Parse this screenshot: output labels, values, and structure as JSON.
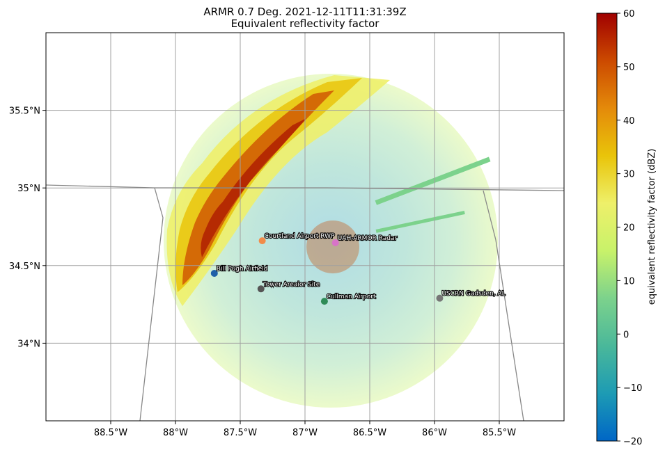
{
  "chart_data": {
    "type": "heatmap",
    "title": "ARMR 0.7 Deg. 2021-12-11T11:31:39Z",
    "subtitle": "Equivalent reflectivity factor",
    "xlim": [
      -89.0,
      -85.0
    ],
    "ylim": [
      33.5,
      36.0
    ],
    "x_ticks": [
      {
        "value": -88.5,
        "label": "88.5°W"
      },
      {
        "value": -88.0,
        "label": "88°W"
      },
      {
        "value": -87.5,
        "label": "87.5°W"
      },
      {
        "value": -87.0,
        "label": "87°W"
      },
      {
        "value": -86.5,
        "label": "86.5°W"
      },
      {
        "value": -86.0,
        "label": "86°W"
      },
      {
        "value": -85.5,
        "label": "85.5°W"
      }
    ],
    "y_ticks": [
      {
        "value": 35.5,
        "label": "35.5°N"
      },
      {
        "value": 35.0,
        "label": "35°N"
      },
      {
        "value": 34.5,
        "label": "34.5°N"
      },
      {
        "value": 34.0,
        "label": "34°N"
      }
    ],
    "grid": true,
    "radar": {
      "lon": -86.765,
      "lat": 34.647
    },
    "stations": [
      {
        "name": "Courtland Airport RWP",
        "lon": -87.33,
        "lat": 34.66,
        "color": "#f28c4a"
      },
      {
        "name": "UAH-ARMOR Radar",
        "lon": -86.765,
        "lat": 34.647,
        "color": "#d873c8"
      },
      {
        "name": "Bill Pugh Airfield",
        "lon": -87.7,
        "lat": 34.45,
        "color": "#1f5fa8"
      },
      {
        "name": "Tower Areaior Site",
        "lon": -87.34,
        "lat": 34.35,
        "color": "#555555"
      },
      {
        "name": "Cullman Airport",
        "lon": -86.85,
        "lat": 34.27,
        "color": "#2e8b57"
      },
      {
        "name": "USCRN Gadsden, AL",
        "lon": -85.96,
        "lat": 34.29,
        "color": "#777777"
      }
    ],
    "colorbar": {
      "label": "equivalent reflectivity factor (dBZ)",
      "min": -20,
      "max": 60,
      "ticks": [
        -20,
        -10,
        0,
        10,
        20,
        30,
        40,
        50,
        60
      ],
      "tick_labels": [
        "−20",
        "−10",
        "0",
        "10",
        "20",
        "30",
        "40",
        "50",
        "60"
      ],
      "colors": [
        "#0066c6",
        "#1d9bb4",
        "#4ab89a",
        "#7cd28c",
        "#c8f26a",
        "#eef06a",
        "#e9c40a",
        "#e48a0a",
        "#cc4a00",
        "#a00000"
      ]
    }
  }
}
